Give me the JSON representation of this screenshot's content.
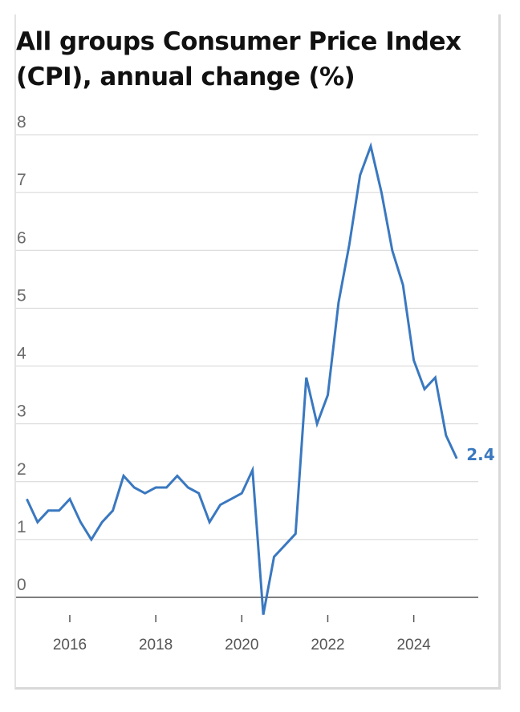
{
  "chart_data": {
    "type": "line",
    "title": "All groups Consumer Price Index (CPI), annual change (%)",
    "xlabel": "",
    "ylabel": "",
    "ylim": [
      0,
      8
    ],
    "xlim": [
      2014.75,
      2025.5
    ],
    "y_ticks": [
      "0",
      "1",
      "2",
      "3",
      "4",
      "5",
      "6",
      "7",
      "8"
    ],
    "x_ticks": [
      "2016",
      "2018",
      "2020",
      "2022",
      "2024"
    ],
    "grid": "horizontal",
    "legend": "none",
    "series": [
      {
        "name": "",
        "color": "#3a78c0",
        "end_label": "2.4",
        "points": [
          [
            2015.0,
            1.7
          ],
          [
            2015.25,
            1.3
          ],
          [
            2015.5,
            1.5
          ],
          [
            2015.75,
            1.5
          ],
          [
            2016.0,
            1.7
          ],
          [
            2016.25,
            1.3
          ],
          [
            2016.5,
            1.0
          ],
          [
            2016.75,
            1.3
          ],
          [
            2017.0,
            1.5
          ],
          [
            2017.25,
            2.1
          ],
          [
            2017.5,
            1.9
          ],
          [
            2017.75,
            1.8
          ],
          [
            2018.0,
            1.9
          ],
          [
            2018.25,
            1.9
          ],
          [
            2018.5,
            2.1
          ],
          [
            2018.75,
            1.9
          ],
          [
            2019.0,
            1.8
          ],
          [
            2019.25,
            1.3
          ],
          [
            2019.5,
            1.6
          ],
          [
            2019.75,
            1.7
          ],
          [
            2020.0,
            1.8
          ],
          [
            2020.25,
            2.2
          ],
          [
            2020.5,
            -0.3
          ],
          [
            2020.75,
            0.7
          ],
          [
            2021.0,
            0.9
          ],
          [
            2021.25,
            1.1
          ],
          [
            2021.5,
            3.8
          ],
          [
            2021.75,
            3.0
          ],
          [
            2022.0,
            3.5
          ],
          [
            2022.25,
            5.1
          ],
          [
            2022.5,
            6.1
          ],
          [
            2022.75,
            7.3
          ],
          [
            2023.0,
            7.8
          ],
          [
            2023.25,
            7.0
          ],
          [
            2023.5,
            6.0
          ],
          [
            2023.75,
            5.4
          ],
          [
            2024.0,
            4.1
          ],
          [
            2024.25,
            3.6
          ],
          [
            2024.5,
            3.8
          ],
          [
            2024.75,
            2.8
          ],
          [
            2025.0,
            2.4
          ]
        ]
      }
    ]
  }
}
